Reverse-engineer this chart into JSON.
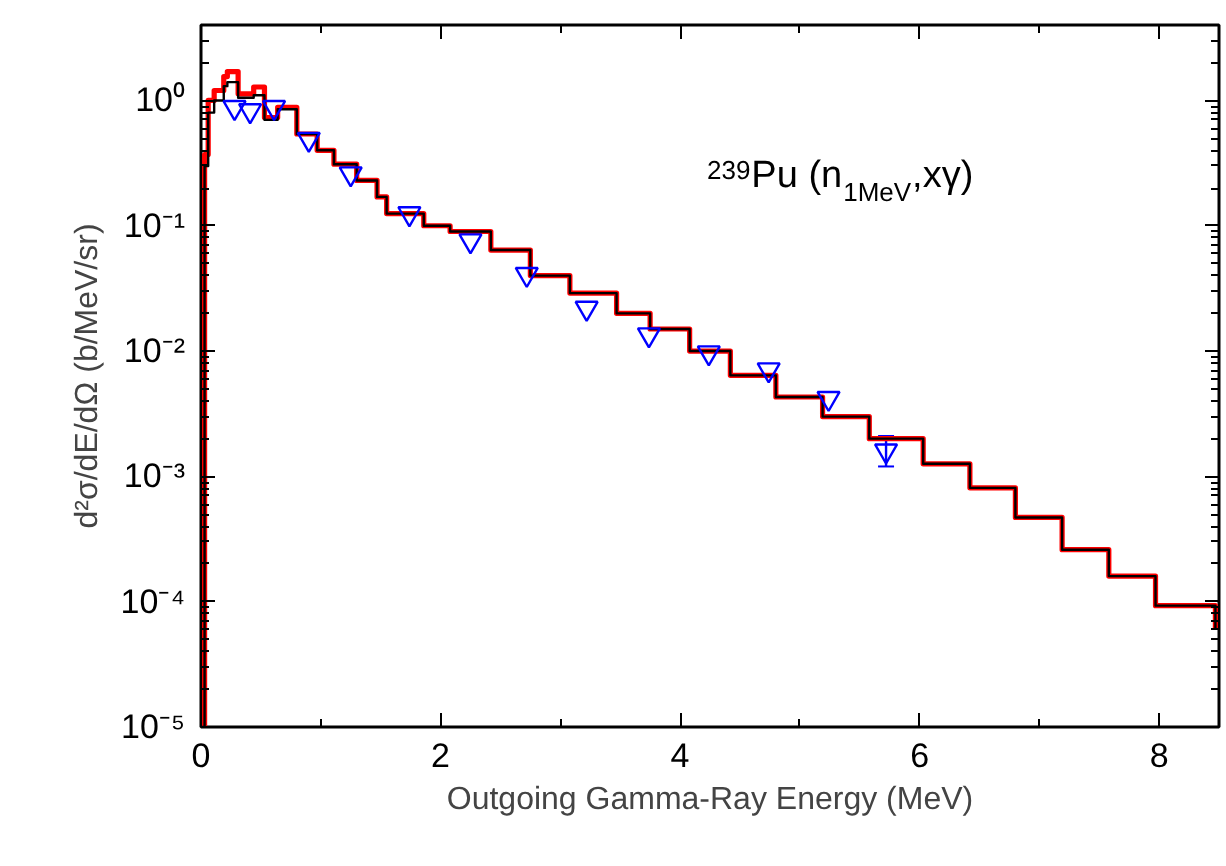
{
  "chart_data": {
    "type": "step",
    "xlabel": "Outgoing Gamma-Ray Energy (MeV)",
    "ylabel": "d²σ/dE/dΩ (b/MeV/sr)",
    "annotations": [
      "$^{239}$Pu (n$_{1MeV}$,xγ)"
    ],
    "log": "y",
    "grid": false,
    "line_style": "solid",
    "xlim": [
      0,
      8.5
    ],
    "xticks": [
      0,
      2,
      4,
      6,
      8
    ],
    "ylim": [
      1e-05,
      4
    ],
    "yticks": [
      {
        "value": 1e-05,
        "label": "10⁻⁵"
      },
      {
        "value": 0.0001,
        "label": "10⁻⁴"
      },
      {
        "value": 0.001,
        "label": "10⁻³"
      },
      {
        "value": 0.01,
        "label": "10⁻²"
      },
      {
        "value": 0.1,
        "label": "10⁻¹"
      },
      {
        "value": 1,
        "label": "10⁰"
      }
    ],
    "series": [
      {
        "color": "#000000",
        "x": [
          0.0,
          0.03,
          0.06,
          0.11,
          0.19,
          0.22,
          0.31,
          0.44,
          0.53,
          0.64,
          0.8,
          0.97,
          1.11,
          1.3,
          1.47,
          1.55,
          1.86,
          2.08,
          2.42,
          2.75,
          3.08,
          3.47,
          3.75,
          4.08,
          4.42,
          4.8,
          5.19,
          5.58,
          6.03,
          6.42,
          6.8,
          7.19,
          7.58,
          7.97,
          8.47
        ],
        "values": [
          1e-05,
          0.3,
          0.8,
          1.0,
          1.3,
          1.4,
          1.05,
          1.1,
          0.7,
          0.85,
          0.54,
          0.4,
          0.31,
          0.23,
          0.17,
          0.125,
          0.1,
          0.09,
          0.064,
          0.04,
          0.029,
          0.02,
          0.015,
          0.01,
          0.0064,
          0.0043,
          0.003,
          0.002,
          0.00126,
          0.00081,
          0.00047,
          0.00026,
          0.00016,
          9.3e-05,
          6e-05
        ]
      },
      {
        "color": "#ff0000",
        "x": [
          0.0,
          0.03,
          0.06,
          0.11,
          0.19,
          0.22,
          0.31,
          0.44,
          0.53,
          0.64,
          0.8,
          0.97,
          1.11,
          1.3,
          1.47,
          1.55,
          1.86,
          2.08,
          2.42,
          2.75,
          3.08,
          3.47,
          3.75,
          4.08,
          4.42,
          4.8,
          5.19,
          5.58,
          6.03,
          6.42,
          6.8,
          7.19,
          7.58,
          7.97,
          8.47
        ],
        "values": [
          1e-05,
          0.37,
          1.0,
          1.2,
          1.55,
          1.7,
          1.13,
          1.28,
          0.73,
          0.88,
          0.54,
          0.4,
          0.31,
          0.23,
          0.17,
          0.125,
          0.1,
          0.09,
          0.064,
          0.04,
          0.029,
          0.02,
          0.015,
          0.01,
          0.0064,
          0.0043,
          0.003,
          0.002,
          0.00126,
          0.00081,
          0.00047,
          0.00026,
          0.00016,
          9.3e-05,
          6e-05
        ]
      },
      {
        "type": "scatter",
        "color": "#0000ff",
        "marker": "triangle",
        "x": [
          0.28,
          0.41,
          0.61,
          0.9,
          1.25,
          1.74,
          2.25,
          2.72,
          3.22,
          3.74,
          4.24,
          4.74,
          5.24,
          5.72
        ],
        "values": [
          0.88,
          0.83,
          0.88,
          0.49,
          0.26,
          0.125,
          0.076,
          0.041,
          0.022,
          0.0135,
          0.0097,
          0.0071,
          0.0042,
          0.0016
        ],
        "errors": [
          null,
          null,
          null,
          null,
          null,
          null,
          null,
          null,
          null,
          null,
          null,
          null,
          null,
          [
            0.0012,
            0.0021
          ]
        ]
      }
    ]
  }
}
